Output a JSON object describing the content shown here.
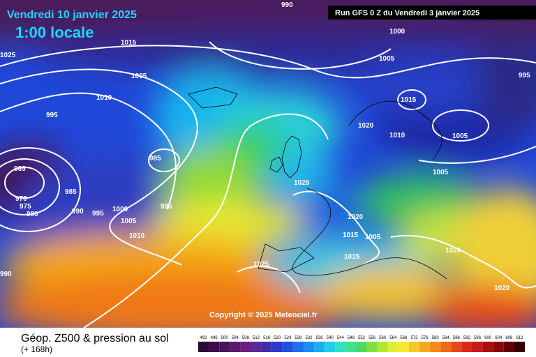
{
  "header": {
    "date": "Vendredi 10 janvier 2025",
    "time": "1:00 locale",
    "run": "Run GFS 0 Z du Vendredi 3 janvier 2025"
  },
  "isobar_labels": [
    990,
    1000,
    1005,
    995,
    1005,
    1010,
    1015,
    995,
    1020,
    1010,
    1005,
    985,
    1005,
    965,
    1025,
    985,
    970,
    975,
    980,
    990,
    995,
    1000,
    995,
    1020,
    1005,
    1015,
    1005,
    1010,
    1020,
    1015,
    1025,
    990,
    1020,
    1025,
    1015
  ],
  "copyright": "Copyright © 2025 Meteociel.fr",
  "footer": {
    "title": "Géop. Z500 & pression au sol",
    "lead": "(+ 168h)"
  },
  "colorbar": {
    "ticks": [
      492,
      496,
      500,
      504,
      508,
      512,
      516,
      520,
      524,
      528,
      532,
      536,
      540,
      544,
      548,
      552,
      556,
      560,
      564,
      568,
      572,
      576,
      580,
      584,
      588,
      592,
      596,
      600,
      604,
      608,
      612
    ]
  }
}
